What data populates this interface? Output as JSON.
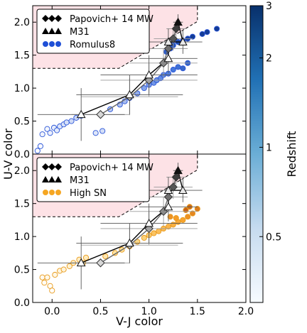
{
  "figure": {
    "xlabel": "V-J color",
    "ylabel": "U-V color",
    "colorbar_label": "Redshift",
    "colorbar_ticks": [
      "0.5",
      "1",
      "2",
      "3"
    ]
  },
  "chart_data": [
    {
      "type": "scatter",
      "panel": "top",
      "xlim": [
        -0.2,
        2.0
      ],
      "ylim": [
        0.0,
        2.25
      ],
      "x_ticks": [
        "0.0",
        "0.5",
        "1.0",
        "1.5",
        "2.0"
      ],
      "y_ticks": [
        "0.0",
        "0.5",
        "1.0",
        "1.5",
        "2.0"
      ],
      "grid": false,
      "legend_position": "top-left",
      "legend": [
        {
          "label": "Papovich+ 14 MW",
          "marker": "diamond"
        },
        {
          "label": "M31",
          "marker": "triangle"
        },
        {
          "label": "Romulus8",
          "marker": "circle",
          "color": "#1f4fd6"
        }
      ],
      "quiescent_region": {
        "color": "#fde2e6",
        "boundary": [
          [
            -0.2,
            1.3
          ],
          [
            0.69,
            1.3
          ],
          [
            1.5,
            2.01
          ],
          [
            1.5,
            2.25
          ]
        ]
      },
      "papovich_mw": [
        {
          "x": 0.5,
          "y": 0.6,
          "xerr": 0.3,
          "yerr": 0.0
        },
        {
          "x": 0.8,
          "y": 0.87,
          "xerr": 0.5,
          "yerr": 0.28
        },
        {
          "x": 1.0,
          "y": 1.12,
          "xerr": 0.5,
          "yerr": 0.25
        },
        {
          "x": 1.15,
          "y": 1.38,
          "xerr": 0.35,
          "yerr": 0.22
        },
        {
          "x": 1.2,
          "y": 1.6,
          "xerr": 0.2,
          "yerr": 0.18
        },
        {
          "x": 1.25,
          "y": 1.75,
          "xerr": 0.2,
          "yerr": 0.18
        },
        {
          "x": 1.28,
          "y": 1.9,
          "xerr": 0.1,
          "yerr": 0.13
        }
      ],
      "m31": [
        {
          "x": 0.3,
          "y": 0.6,
          "xerr": 0.45,
          "yerr": 0.4
        },
        {
          "x": 0.8,
          "y": 0.9,
          "xerr": 0.55,
          "yerr": 0.3
        },
        {
          "x": 1.0,
          "y": 1.2,
          "xerr": 0.5,
          "yerr": 0.3
        },
        {
          "x": 1.2,
          "y": 1.45,
          "xerr": 0.3,
          "yerr": 0.22
        },
        {
          "x": 1.2,
          "y": 1.7,
          "xerr": 0.2,
          "yerr": 0.2
        },
        {
          "x": 1.35,
          "y": 1.7,
          "xerr": 0.2,
          "yerr": 0.18
        },
        {
          "x": 1.3,
          "y": 2.0,
          "xerr": 0.05,
          "yerr": 0.12
        }
      ],
      "simulation": {
        "name": "Romulus8",
        "points": [
          {
            "x": -0.15,
            "y": 0.05,
            "z": 2.9
          },
          {
            "x": -0.12,
            "y": 0.12,
            "z": 2.8
          },
          {
            "x": -0.1,
            "y": 0.3,
            "z": 2.6
          },
          {
            "x": -0.05,
            "y": 0.38,
            "z": 2.7
          },
          {
            "x": -0.02,
            "y": 0.32,
            "z": 2.5
          },
          {
            "x": 0.02,
            "y": 0.4,
            "z": 2.4
          },
          {
            "x": 0.05,
            "y": 0.36,
            "z": 2.3
          },
          {
            "x": 0.08,
            "y": 0.42,
            "z": 2.2
          },
          {
            "x": 0.12,
            "y": 0.45,
            "z": 2.1
          },
          {
            "x": 0.15,
            "y": 0.48,
            "z": 2.0
          },
          {
            "x": 0.2,
            "y": 0.5,
            "z": 1.9
          },
          {
            "x": 0.25,
            "y": 0.55,
            "z": 1.8
          },
          {
            "x": 0.3,
            "y": 0.58,
            "z": 1.7
          },
          {
            "x": 0.45,
            "y": 0.32,
            "z": 2.2
          },
          {
            "x": 0.52,
            "y": 0.35,
            "z": 2.0
          },
          {
            "x": 0.6,
            "y": 0.68,
            "z": 1.5
          },
          {
            "x": 0.7,
            "y": 0.75,
            "z": 1.4
          },
          {
            "x": 0.75,
            "y": 0.8,
            "z": 1.3
          },
          {
            "x": 0.8,
            "y": 0.85,
            "z": 1.2
          },
          {
            "x": 0.88,
            "y": 0.92,
            "z": 1.1
          },
          {
            "x": 0.95,
            "y": 1.0,
            "z": 1.0
          },
          {
            "x": 1.0,
            "y": 1.05,
            "z": 0.9
          },
          {
            "x": 1.05,
            "y": 1.08,
            "z": 0.85
          },
          {
            "x": 1.08,
            "y": 1.12,
            "z": 0.8
          },
          {
            "x": 1.12,
            "y": 1.15,
            "z": 0.75
          },
          {
            "x": 1.15,
            "y": 1.2,
            "z": 0.7
          },
          {
            "x": 1.2,
            "y": 1.22,
            "z": 0.65
          },
          {
            "x": 1.25,
            "y": 1.28,
            "z": 0.6
          },
          {
            "x": 1.3,
            "y": 1.32,
            "z": 0.55
          },
          {
            "x": 1.35,
            "y": 1.3,
            "z": 0.5
          },
          {
            "x": 1.4,
            "y": 1.38,
            "z": 0.48
          },
          {
            "x": 1.18,
            "y": 1.55,
            "z": 0.45
          },
          {
            "x": 1.22,
            "y": 1.6,
            "z": 0.42
          },
          {
            "x": 1.25,
            "y": 1.65,
            "z": 0.4
          },
          {
            "x": 1.3,
            "y": 1.7,
            "z": 0.38
          },
          {
            "x": 1.35,
            "y": 1.72,
            "z": 0.35
          },
          {
            "x": 1.4,
            "y": 1.75,
            "z": 0.33
          },
          {
            "x": 1.45,
            "y": 1.78,
            "z": 0.3
          },
          {
            "x": 1.55,
            "y": 1.82,
            "z": 0.28
          },
          {
            "x": 1.6,
            "y": 1.85,
            "z": 0.25
          },
          {
            "x": 1.7,
            "y": 1.9,
            "z": 0.2
          }
        ]
      }
    },
    {
      "type": "scatter",
      "panel": "bottom",
      "xlim": [
        -0.2,
        2.0
      ],
      "ylim": [
        0.0,
        2.25
      ],
      "x_ticks": [
        "0.0",
        "0.5",
        "1.0",
        "1.5",
        "2.0"
      ],
      "y_ticks": [
        "0.0",
        "0.5",
        "1.0",
        "1.5",
        "2.0"
      ],
      "grid": false,
      "legend_position": "top-left",
      "legend": [
        {
          "label": "Papovich+ 14 MW",
          "marker": "diamond"
        },
        {
          "label": "M31",
          "marker": "triangle"
        },
        {
          "label": "High SN",
          "marker": "circle",
          "color": "#f5a623"
        }
      ],
      "quiescent_region": {
        "color": "#fde2e6",
        "boundary": [
          [
            -0.2,
            1.3
          ],
          [
            0.69,
            1.3
          ],
          [
            1.5,
            2.01
          ],
          [
            1.5,
            2.25
          ]
        ]
      },
      "papovich_mw": [
        {
          "x": 0.5,
          "y": 0.6,
          "xerr": 0.3,
          "yerr": 0.0
        },
        {
          "x": 0.8,
          "y": 0.87,
          "xerr": 0.5,
          "yerr": 0.28
        },
        {
          "x": 1.0,
          "y": 1.12,
          "xerr": 0.5,
          "yerr": 0.25
        },
        {
          "x": 1.15,
          "y": 1.38,
          "xerr": 0.35,
          "yerr": 0.22
        },
        {
          "x": 1.2,
          "y": 1.6,
          "xerr": 0.2,
          "yerr": 0.18
        },
        {
          "x": 1.25,
          "y": 1.75,
          "xerr": 0.2,
          "yerr": 0.18
        },
        {
          "x": 1.28,
          "y": 1.9,
          "xerr": 0.1,
          "yerr": 0.13
        }
      ],
      "m31": [
        {
          "x": 0.3,
          "y": 0.6,
          "xerr": 0.45,
          "yerr": 0.4
        },
        {
          "x": 0.8,
          "y": 0.9,
          "xerr": 0.55,
          "yerr": 0.3
        },
        {
          "x": 1.0,
          "y": 1.2,
          "xerr": 0.5,
          "yerr": 0.3
        },
        {
          "x": 1.2,
          "y": 1.45,
          "xerr": 0.3,
          "yerr": 0.22
        },
        {
          "x": 1.2,
          "y": 1.7,
          "xerr": 0.2,
          "yerr": 0.2
        },
        {
          "x": 1.35,
          "y": 1.7,
          "xerr": 0.2,
          "yerr": 0.18
        },
        {
          "x": 1.3,
          "y": 2.0,
          "xerr": 0.05,
          "yerr": 0.12
        }
      ],
      "simulation": {
        "name": "High SN",
        "points": [
          {
            "x": -0.1,
            "y": 0.38,
            "z": 2.7
          },
          {
            "x": -0.05,
            "y": 0.38,
            "z": 2.6
          },
          {
            "x": -0.08,
            "y": 0.3,
            "z": 2.8
          },
          {
            "x": -0.02,
            "y": 0.25,
            "z": 2.9
          },
          {
            "x": 0.0,
            "y": 0.18,
            "z": 3.0
          },
          {
            "x": 0.03,
            "y": 0.42,
            "z": 2.5
          },
          {
            "x": 0.08,
            "y": 0.48,
            "z": 2.4
          },
          {
            "x": 0.12,
            "y": 0.5,
            "z": 2.3
          },
          {
            "x": 0.18,
            "y": 0.55,
            "z": 2.2
          },
          {
            "x": 0.22,
            "y": 0.6,
            "z": 2.1
          },
          {
            "x": 0.28,
            "y": 0.65,
            "z": 2.0
          },
          {
            "x": 0.35,
            "y": 0.68,
            "z": 1.9
          },
          {
            "x": 0.32,
            "y": 0.6,
            "z": 2.0
          },
          {
            "x": 0.55,
            "y": 0.7,
            "z": 1.7
          },
          {
            "x": 0.65,
            "y": 0.75,
            "z": 1.6
          },
          {
            "x": 0.72,
            "y": 0.8,
            "z": 1.5
          },
          {
            "x": 0.8,
            "y": 0.85,
            "z": 1.4
          },
          {
            "x": 0.88,
            "y": 0.92,
            "z": 1.3
          },
          {
            "x": 0.95,
            "y": 0.98,
            "z": 1.2
          },
          {
            "x": 1.0,
            "y": 1.02,
            "z": 1.1
          },
          {
            "x": 1.05,
            "y": 1.05,
            "z": 1.0
          },
          {
            "x": 1.1,
            "y": 1.08,
            "z": 0.95
          },
          {
            "x": 1.15,
            "y": 1.12,
            "z": 0.9
          },
          {
            "x": 1.2,
            "y": 1.15,
            "z": 0.85
          },
          {
            "x": 1.25,
            "y": 1.18,
            "z": 0.8
          },
          {
            "x": 1.3,
            "y": 1.22,
            "z": 0.75
          },
          {
            "x": 1.35,
            "y": 1.25,
            "z": 0.7
          },
          {
            "x": 1.4,
            "y": 1.3,
            "z": 0.6
          },
          {
            "x": 1.45,
            "y": 1.35,
            "z": 0.55
          },
          {
            "x": 1.5,
            "y": 1.42,
            "z": 0.5
          },
          {
            "x": 1.42,
            "y": 1.45,
            "z": 0.45
          },
          {
            "x": 1.38,
            "y": 1.4,
            "z": 0.4
          },
          {
            "x": 1.28,
            "y": 1.28,
            "z": 0.65
          },
          {
            "x": 1.22,
            "y": 1.3,
            "z": 0.6
          }
        ]
      }
    }
  ]
}
